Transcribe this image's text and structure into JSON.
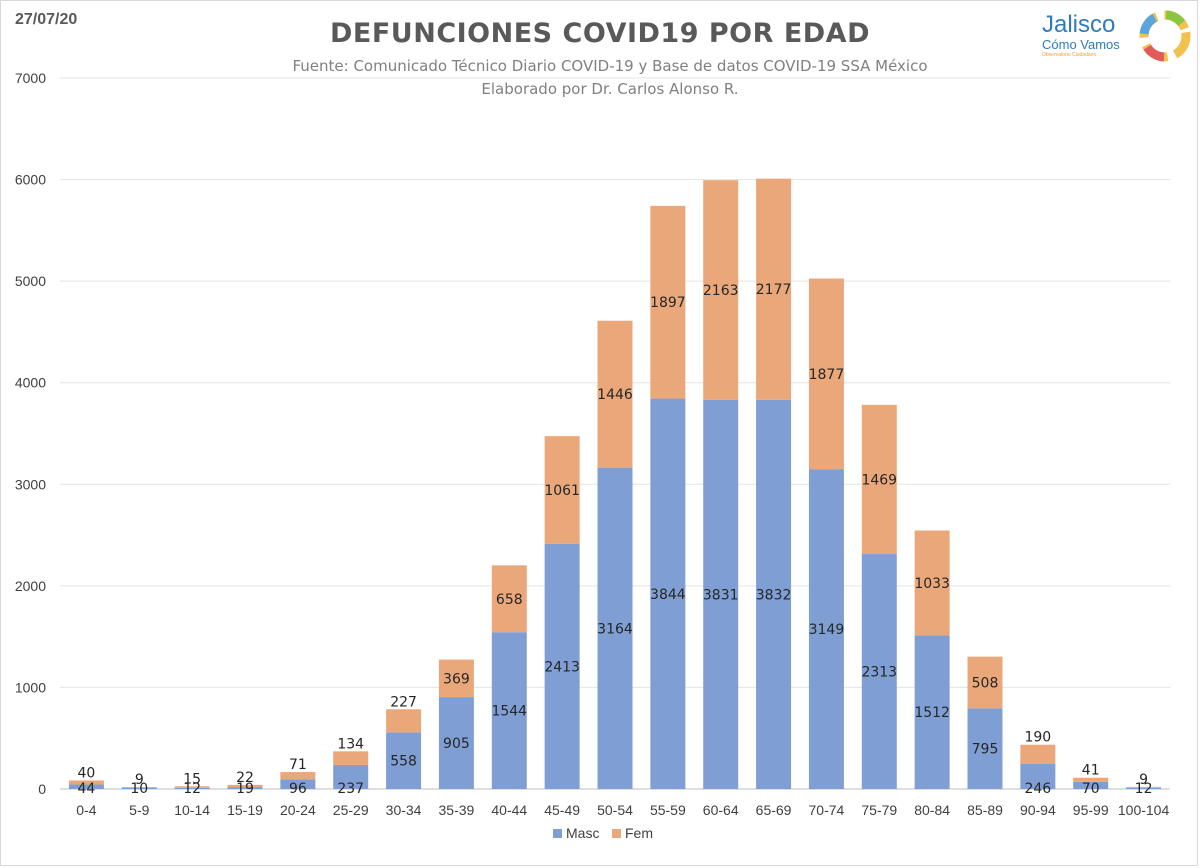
{
  "date": "27/07/20",
  "logo": {
    "name": "Jalisco",
    "sub": "Cómo Vamos",
    "tag": "Observatorio Ciudadano"
  },
  "colors": {
    "masc": "#7f9fd4",
    "fem": "#eaa87a",
    "grid": "#e3e3e3"
  },
  "chart_data": {
    "type": "bar",
    "stacked": true,
    "title": "DEFUNCIONES COVID19 POR EDAD",
    "subtitle": [
      "Fuente: Comunicado Técnico Diario COVID-19 y Base de datos COVID-19 SSA México",
      "Elaborado por Dr. Carlos Alonso R."
    ],
    "xlabel": "",
    "ylabel": "",
    "ylim": [
      0,
      7000
    ],
    "yticks": [
      0,
      1000,
      2000,
      3000,
      4000,
      5000,
      6000,
      7000
    ],
    "grid": true,
    "legend_position": "bottom",
    "categories": [
      "0-4",
      "5-9",
      "10-14",
      "15-19",
      "20-24",
      "25-29",
      "30-34",
      "35-39",
      "40-44",
      "45-49",
      "50-54",
      "55-59",
      "60-64",
      "65-69",
      "70-74",
      "75-79",
      "80-84",
      "85-89",
      "90-94",
      "95-99",
      "100-104"
    ],
    "series": [
      {
        "name": "Masc",
        "values": [
          44,
          10,
          12,
          19,
          96,
          237,
          558,
          905,
          1544,
          2413,
          3164,
          3844,
          3831,
          3832,
          3149,
          2313,
          1512,
          795,
          246,
          70,
          12
        ]
      },
      {
        "name": "Fem",
        "values": [
          40,
          9,
          15,
          22,
          71,
          134,
          227,
          369,
          658,
          1061,
          1446,
          1897,
          2163,
          2177,
          1877,
          1469,
          1033,
          508,
          190,
          41,
          9
        ]
      }
    ]
  }
}
